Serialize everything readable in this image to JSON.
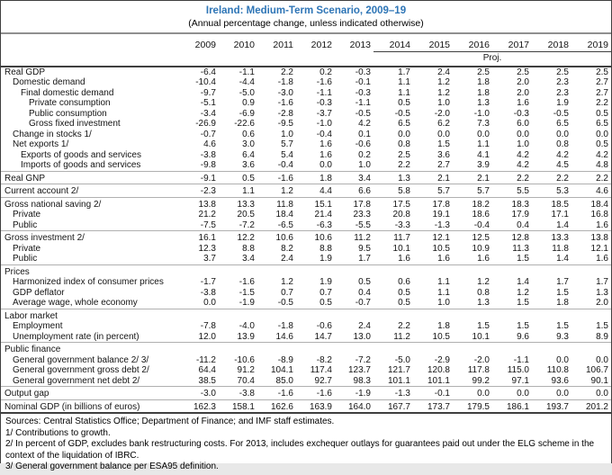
{
  "title": "Ireland: Medium-Term Scenario, 2009–19",
  "subtitle": "(Annual percentage change, unless indicated otherwise)",
  "table": {
    "proj_label": "Proj.",
    "years": [
      "2009",
      "2010",
      "2011",
      "2012",
      "2013",
      "2014",
      "2015",
      "2016",
      "2017",
      "2018",
      "2019"
    ],
    "rows": [
      {
        "label": "Real GDP",
        "indent": 0,
        "sep": false,
        "values": [
          "-6.4",
          "-1.1",
          "2.2",
          "0.2",
          "-0.3",
          "1.7",
          "2.4",
          "2.5",
          "2.5",
          "2.5",
          "2.5"
        ]
      },
      {
        "label": "Domestic demand",
        "indent": 1,
        "sep": false,
        "values": [
          "-10.4",
          "-4.4",
          "-1.8",
          "-1.6",
          "-0.1",
          "1.1",
          "1.2",
          "1.8",
          "2.0",
          "2.3",
          "2.7"
        ]
      },
      {
        "label": "Final domestic demand",
        "indent": 2,
        "sep": false,
        "values": [
          "-9.7",
          "-5.0",
          "-3.0",
          "-1.1",
          "-0.3",
          "1.1",
          "1.2",
          "1.8",
          "2.0",
          "2.3",
          "2.7"
        ]
      },
      {
        "label": "Private consumption",
        "indent": 3,
        "sep": false,
        "values": [
          "-5.1",
          "0.9",
          "-1.6",
          "-0.3",
          "-1.1",
          "0.5",
          "1.0",
          "1.3",
          "1.6",
          "1.9",
          "2.2"
        ]
      },
      {
        "label": "Public consumption",
        "indent": 3,
        "sep": false,
        "values": [
          "-3.4",
          "-6.9",
          "-2.8",
          "-3.7",
          "-0.5",
          "-0.5",
          "-2.0",
          "-1.0",
          "-0.3",
          "-0.5",
          "0.5"
        ]
      },
      {
        "label": "Gross fixed investment",
        "indent": 3,
        "sep": false,
        "values": [
          "-26.9",
          "-22.6",
          "-9.5",
          "-1.0",
          "4.2",
          "6.5",
          "6.2",
          "7.3",
          "6.0",
          "6.5",
          "6.5"
        ]
      },
      {
        "label": "Change in stocks 1/",
        "indent": 1,
        "sep": false,
        "values": [
          "-0.7",
          "0.6",
          "1.0",
          "-0.4",
          "0.1",
          "0.0",
          "0.0",
          "0.0",
          "0.0",
          "0.0",
          "0.0"
        ]
      },
      {
        "label": "Net exports 1/",
        "indent": 1,
        "sep": false,
        "values": [
          "4.6",
          "3.0",
          "5.7",
          "1.6",
          "-0.6",
          "0.8",
          "1.5",
          "1.1",
          "1.0",
          "0.8",
          "0.5"
        ]
      },
      {
        "label": "Exports of goods and services",
        "indent": 2,
        "sep": false,
        "values": [
          "-3.8",
          "6.4",
          "5.4",
          "1.6",
          "0.2",
          "2.5",
          "3.6",
          "4.1",
          "4.2",
          "4.2",
          "4.2"
        ]
      },
      {
        "label": "Imports of goods and services",
        "indent": 2,
        "sep": false,
        "values": [
          "-9.8",
          "3.6",
          "-0.4",
          "0.0",
          "1.0",
          "2.2",
          "2.7",
          "3.9",
          "4.2",
          "4.5",
          "4.8"
        ]
      },
      {
        "label": "Real GNP",
        "indent": 0,
        "sep": true,
        "values": [
          "-9.1",
          "0.5",
          "-1.6",
          "1.8",
          "3.4",
          "1.3",
          "2.1",
          "2.1",
          "2.2",
          "2.2",
          "2.2"
        ]
      },
      {
        "label": "Current account 2/",
        "indent": 0,
        "sep": true,
        "values": [
          "-2.3",
          "1.1",
          "1.2",
          "4.4",
          "6.6",
          "5.8",
          "5.7",
          "5.7",
          "5.5",
          "5.3",
          "4.6"
        ]
      },
      {
        "label": "Gross national saving 2/",
        "indent": 0,
        "sep": true,
        "values": [
          "13.8",
          "13.3",
          "11.8",
          "15.1",
          "17.8",
          "17.5",
          "17.8",
          "18.2",
          "18.3",
          "18.5",
          "18.4"
        ]
      },
      {
        "label": "Private",
        "indent": 1,
        "sep": false,
        "values": [
          "21.2",
          "20.5",
          "18.4",
          "21.4",
          "23.3",
          "20.8",
          "19.1",
          "18.6",
          "17.9",
          "17.1",
          "16.8"
        ]
      },
      {
        "label": "Public",
        "indent": 1,
        "sep": false,
        "values": [
          "-7.5",
          "-7.2",
          "-6.5",
          "-6.3",
          "-5.5",
          "-3.3",
          "-1.3",
          "-0.4",
          "0.4",
          "1.4",
          "1.6"
        ]
      },
      {
        "label": "Gross investment 2/",
        "indent": 0,
        "sep": true,
        "values": [
          "16.1",
          "12.2",
          "10.6",
          "10.6",
          "11.2",
          "11.7",
          "12.1",
          "12.5",
          "12.8",
          "13.3",
          "13.8"
        ]
      },
      {
        "label": "Private",
        "indent": 1,
        "sep": false,
        "values": [
          "12.3",
          "8.8",
          "8.2",
          "8.8",
          "9.5",
          "10.1",
          "10.5",
          "10.9",
          "11.3",
          "11.8",
          "12.1"
        ]
      },
      {
        "label": "Public",
        "indent": 1,
        "sep": false,
        "values": [
          "3.7",
          "3.4",
          "2.4",
          "1.9",
          "1.7",
          "1.6",
          "1.6",
          "1.6",
          "1.5",
          "1.4",
          "1.6"
        ]
      },
      {
        "label": "Prices",
        "indent": 0,
        "sep": true,
        "header": true,
        "values": []
      },
      {
        "label": "Harmonized index of consumer prices",
        "indent": 1,
        "sep": false,
        "values": [
          "-1.7",
          "-1.6",
          "1.2",
          "1.9",
          "0.5",
          "0.6",
          "1.1",
          "1.2",
          "1.4",
          "1.7",
          "1.7"
        ]
      },
      {
        "label": "GDP deflator",
        "indent": 1,
        "sep": false,
        "values": [
          "-3.8",
          "-1.5",
          "0.7",
          "0.7",
          "0.4",
          "0.5",
          "1.1",
          "0.8",
          "1.2",
          "1.5",
          "1.3"
        ]
      },
      {
        "label": "Average wage, whole economy",
        "indent": 1,
        "sep": false,
        "values": [
          "0.0",
          "-1.9",
          "-0.5",
          "0.5",
          "-0.7",
          "0.5",
          "1.0",
          "1.3",
          "1.5",
          "1.8",
          "2.0"
        ]
      },
      {
        "label": "Labor market",
        "indent": 0,
        "sep": true,
        "header": true,
        "values": []
      },
      {
        "label": "Employment",
        "indent": 1,
        "sep": false,
        "values": [
          "-7.8",
          "-4.0",
          "-1.8",
          "-0.6",
          "2.4",
          "2.2",
          "1.8",
          "1.5",
          "1.5",
          "1.5",
          "1.5"
        ]
      },
      {
        "label": "Unemployment rate (in percent)",
        "indent": 1,
        "sep": false,
        "values": [
          "12.0",
          "13.9",
          "14.6",
          "14.7",
          "13.0",
          "11.2",
          "10.5",
          "10.1",
          "9.6",
          "9.3",
          "8.9"
        ]
      },
      {
        "label": "Public finance",
        "indent": 0,
        "sep": true,
        "header": true,
        "values": []
      },
      {
        "label": "General government balance 2/ 3/",
        "indent": 1,
        "sep": false,
        "values": [
          "-11.2",
          "-10.6",
          "-8.9",
          "-8.2",
          "-7.2",
          "-5.0",
          "-2.9",
          "-2.0",
          "-1.1",
          "0.0",
          "0.0"
        ]
      },
      {
        "label": "General government gross debt 2/",
        "indent": 1,
        "sep": false,
        "values": [
          "64.4",
          "91.2",
          "104.1",
          "117.4",
          "123.7",
          "121.7",
          "120.8",
          "117.8",
          "115.0",
          "110.8",
          "106.7"
        ]
      },
      {
        "label": "General government net debt 2/",
        "indent": 1,
        "sep": false,
        "values": [
          "38.5",
          "70.4",
          "85.0",
          "92.7",
          "98.3",
          "101.1",
          "101.1",
          "99.2",
          "97.1",
          "93.6",
          "90.1"
        ]
      },
      {
        "label": "Output gap",
        "indent": 0,
        "sep": true,
        "values": [
          "-3.0",
          "-3.8",
          "-1.6",
          "-1.6",
          "-1.9",
          "-1.3",
          "-0.1",
          "0.0",
          "0.0",
          "0.0",
          "0.0"
        ]
      },
      {
        "label": "Nominal GDP (in billions of euros)",
        "indent": 0,
        "sep": true,
        "values": [
          "162.3",
          "158.1",
          "162.6",
          "163.9",
          "164.0",
          "167.7",
          "173.7",
          "179.5",
          "186.1",
          "193.7",
          "201.2"
        ]
      }
    ]
  },
  "footnotes": {
    "sources": "Sources: Central Statistics Office; Department of Finance; and IMF staff estimates.",
    "fn1": "1/ Contributions to growth.",
    "fn2": "2/ In percent of GDP, excludes bank restructuring costs. For 2013, includes exchequer outlays for guarantees paid out under the ELG scheme in the context of the liquidation of IBRC.",
    "fn3": "3/ General government balance per ESA95  definition."
  },
  "colors": {
    "title_blue": "#2e75b6",
    "bottom_bar": "#2c5c8a",
    "section_rule": "#b0b0b0",
    "heavy_rule": "#3f3f3f"
  }
}
